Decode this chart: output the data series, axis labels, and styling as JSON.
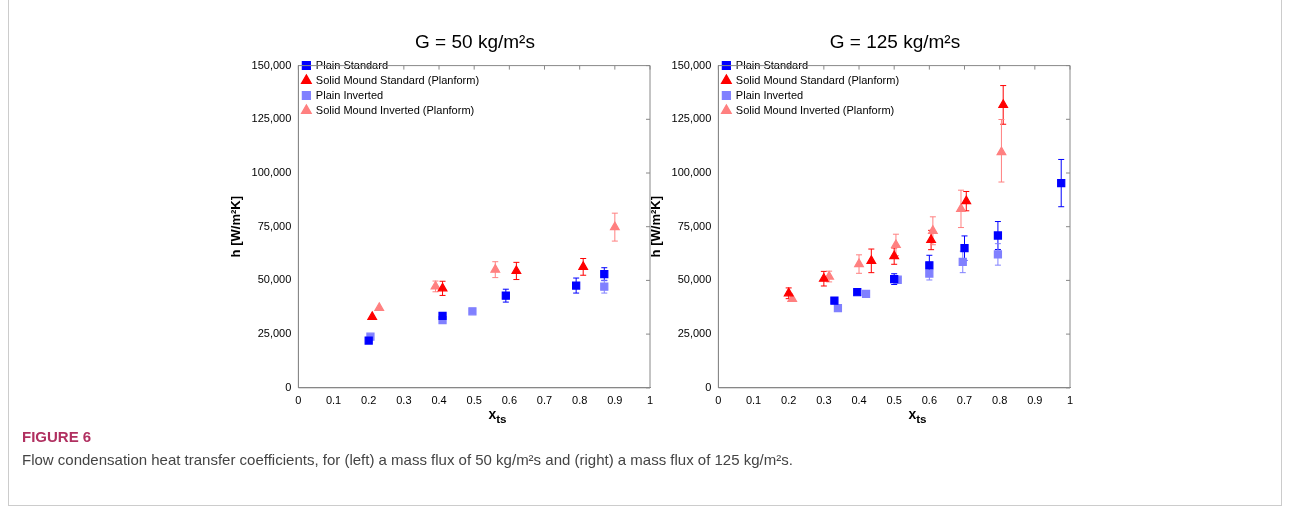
{
  "chart_data": [
    {
      "type": "scatter",
      "title": "G = 50 kg/m²s",
      "xlabel": "x$_{ts}$",
      "ylabel": "h [W/m²K]",
      "xlim": [
        0,
        1
      ],
      "xticks": [
        0,
        0.1,
        0.2,
        0.3,
        0.4,
        0.5,
        0.6,
        0.7,
        0.8,
        0.9,
        1
      ],
      "ylim": [
        0,
        150000
      ],
      "yticks": [
        0,
        {
          "value": 25000,
          "label": "25,000"
        },
        {
          "value": 50000,
          "label": "50,000"
        },
        {
          "value": 75000,
          "label": "75,000"
        },
        {
          "value": 100000,
          "label": "100,000"
        },
        {
          "value": 125000,
          "label": "125,000"
        },
        {
          "value": 150000,
          "label": "150,000"
        }
      ],
      "grid": false,
      "legend": "top left",
      "series": [
        {
          "name": "Plain Standard",
          "color": "#0000ff",
          "marker": "square",
          "x": [
            0.2,
            0.41,
            0.59,
            0.79,
            0.87
          ],
          "values": [
            22000,
            33500,
            42900,
            47600,
            52900
          ],
          "errors": [
            null,
            null,
            3000,
            3500,
            3000
          ]
        },
        {
          "name": "Solid Mound Standard (Planform)",
          "color": "#ff0000",
          "marker": "triangle",
          "x": [
            0.21,
            0.41,
            0.62,
            0.81
          ],
          "values": [
            33000,
            46300,
            54400,
            56300
          ],
          "errors": [
            null,
            3300,
            4000,
            3900
          ]
        },
        {
          "name": "Plain Inverted",
          "color": "#8080ff",
          "marker": "square",
          "x": [
            0.205,
            0.41,
            0.495,
            0.87
          ],
          "values": [
            23800,
            31500,
            35600,
            47100
          ],
          "errors": [
            null,
            null,
            null,
            3000
          ]
        },
        {
          "name": "Solid Mound Inverted (Planform)",
          "color": "#ff8080",
          "marker": "triangle",
          "x": [
            0.23,
            0.39,
            0.56,
            0.9
          ],
          "values": [
            37200,
            47200,
            55000,
            74800
          ],
          "errors": [
            null,
            2500,
            3700,
            6500
          ]
        }
      ],
      "annotations": [
        "FIGURE 6",
        "Flow condensation heat transfer coefficients, for (left) a mass flux of 50 kg/m²s and (right) a mass flux of 125 kg/m²s."
      ]
    },
    {
      "type": "scatter",
      "title": "G = 125 kg/m²s",
      "xlabel": "x$_{ts}$",
      "ylabel": "h [W/m²K]",
      "xlim": [
        0,
        1
      ],
      "xticks": [
        0,
        0.1,
        0.2,
        0.3,
        0.4,
        0.5,
        0.6,
        0.7,
        0.8,
        0.9,
        1
      ],
      "ylim": [
        0,
        150000
      ],
      "yticks": [
        0,
        {
          "value": 25000,
          "label": "25,000"
        },
        {
          "value": 50000,
          "label": "50,000"
        },
        {
          "value": 75000,
          "label": "75,000"
        },
        {
          "value": 100000,
          "label": "100,000"
        },
        {
          "value": 125000,
          "label": "125,000"
        },
        {
          "value": 150000,
          "label": "150,000"
        }
      ],
      "grid": false,
      "legend": "top left",
      "series": [
        {
          "name": "Plain Standard",
          "color": "#0000ff",
          "marker": "square",
          "x": [
            0.33,
            0.395,
            0.5,
            0.6,
            0.7,
            0.795,
            0.975
          ],
          "values": [
            40600,
            44500,
            50600,
            57000,
            65000,
            70900,
            95300
          ],
          "errors": [
            null,
            null,
            2500,
            4700,
            5700,
            6500,
            11000
          ]
        },
        {
          "name": "Solid Mound Standard (Planform)",
          "color": "#ff0000",
          "marker": "triangle",
          "x": [
            0.2,
            0.3,
            0.435,
            0.5,
            0.605,
            0.705,
            0.81
          ],
          "values": [
            44000,
            50800,
            59100,
            61300,
            68800,
            86900,
            131700
          ],
          "errors": [
            2500,
            3400,
            5500,
            3800,
            4500,
            4500,
            9000
          ]
        },
        {
          "name": "Plain Inverted",
          "color": "#8080ff",
          "marker": "square",
          "x": [
            0.34,
            0.42,
            0.51,
            0.6,
            0.695,
            0.795
          ],
          "values": [
            37100,
            43700,
            50300,
            53200,
            58600,
            62100
          ],
          "errors": [
            null,
            null,
            null,
            3000,
            5000,
            5000
          ]
        },
        {
          "name": "Solid Mound Inverted (Planform)",
          "color": "#ff8080",
          "marker": "triangle",
          "x": [
            0.21,
            0.315,
            0.4,
            0.505,
            0.61,
            0.69,
            0.805
          ],
          "values": [
            41400,
            51800,
            57600,
            66500,
            73100,
            83300,
            109700
          ],
          "errors": [
            null,
            2500,
            4300,
            5000,
            6500,
            8700,
            [
              95800,
              124900
            ]
          ]
        }
      ]
    }
  ]
}
